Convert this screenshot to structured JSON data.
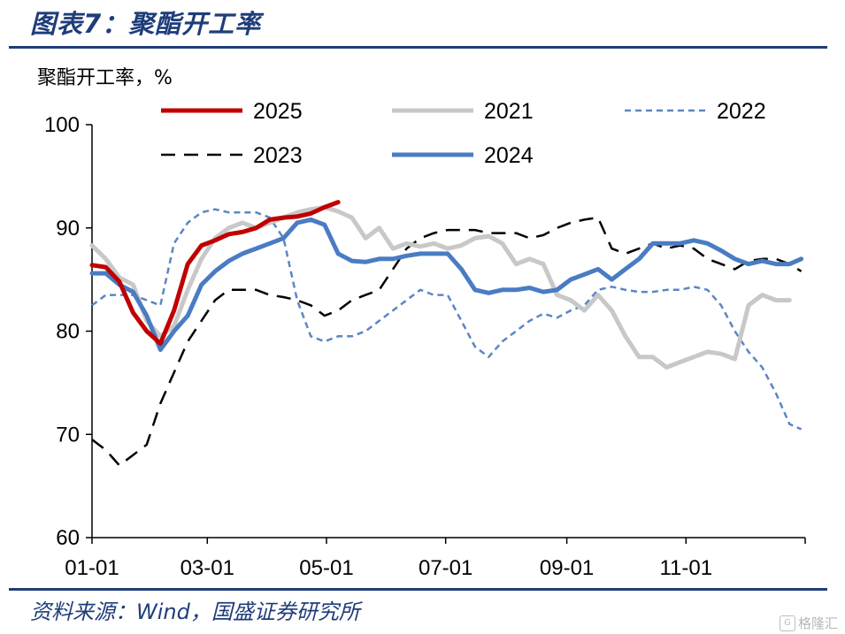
{
  "header": {
    "title": "图表7：聚酯开工率"
  },
  "footer": {
    "source": "资料来源：Wind，国盛证券研究所",
    "watermark": "格隆汇"
  },
  "chart_data": {
    "type": "line",
    "title": "图表7：聚酯开工率",
    "ylabel": "聚酯开工率，%",
    "xlabel": "",
    "ylim": [
      60,
      100
    ],
    "yticks": [
      60,
      70,
      80,
      90,
      100
    ],
    "x_range_days": [
      0,
      365
    ],
    "xticks": [
      {
        "label": "01-01",
        "day": 0
      },
      {
        "label": "03-01",
        "day": 59
      },
      {
        "label": "05-01",
        "day": 120
      },
      {
        "label": "07-01",
        "day": 181
      },
      {
        "label": "09-01",
        "day": 243
      },
      {
        "label": "11-01",
        "day": 304
      }
    ],
    "legend": {
      "placement": "top",
      "order": [
        "2025",
        "2021",
        "2022",
        "2023",
        "2024"
      ]
    },
    "series": [
      {
        "name": "2025",
        "color": "#c00000",
        "width": 5,
        "dash": "",
        "x": [
          0,
          7,
          14,
          21,
          28,
          35,
          42,
          49,
          56,
          63,
          70,
          77,
          84,
          91,
          98,
          105,
          112,
          119,
          126
        ],
        "y": [
          86.4,
          86.2,
          84.8,
          81.8,
          80.0,
          78.8,
          82.0,
          86.5,
          88.3,
          88.8,
          89.4,
          89.6,
          90.0,
          90.8,
          91.0,
          91.1,
          91.4,
          92.0,
          92.5
        ]
      },
      {
        "name": "2021",
        "color": "#c8c8c8",
        "width": 5,
        "dash": "",
        "x": [
          0,
          7,
          14,
          21,
          28,
          35,
          42,
          49,
          56,
          63,
          70,
          77,
          84,
          91,
          98,
          105,
          112,
          119,
          126,
          133,
          140,
          147,
          154,
          161,
          168,
          175,
          182,
          189,
          196,
          203,
          210,
          217,
          224,
          231,
          238,
          245,
          252,
          259,
          266,
          273,
          280,
          287,
          294,
          301,
          308,
          315,
          322,
          329,
          336,
          343,
          350,
          357
        ],
        "y": [
          88.3,
          87.0,
          85.2,
          84.5,
          81.0,
          79.5,
          80.5,
          84.0,
          87.0,
          89.0,
          90.0,
          90.5,
          90.0,
          90.5,
          91.0,
          91.5,
          91.8,
          92.0,
          91.6,
          91.0,
          89.0,
          90.0,
          88.0,
          88.5,
          88.2,
          88.5,
          88.0,
          88.3,
          89.0,
          89.2,
          88.5,
          86.5,
          87.0,
          86.5,
          83.5,
          83.0,
          82.0,
          83.5,
          82.0,
          79.5,
          77.5,
          77.5,
          76.5,
          77.0,
          77.5,
          78.0,
          77.8,
          77.3,
          82.5,
          83.5,
          83.0,
          83.0
        ]
      },
      {
        "name": "2022",
        "color": "#5b86c5",
        "width": 2.5,
        "dash": "7,5",
        "x": [
          0,
          7,
          14,
          21,
          28,
          35,
          42,
          49,
          56,
          63,
          70,
          77,
          84,
          91,
          98,
          105,
          112,
          119,
          126,
          133,
          140,
          147,
          154,
          161,
          168,
          175,
          182,
          189,
          196,
          203,
          210,
          217,
          224,
          231,
          238,
          245,
          252,
          259,
          266,
          273,
          280,
          287,
          294,
          301,
          308,
          315,
          322,
          329,
          336,
          343,
          350,
          357,
          363
        ],
        "y": [
          82.5,
          83.5,
          83.5,
          83.5,
          83.0,
          82.5,
          88.5,
          90.5,
          91.5,
          91.8,
          91.5,
          91.5,
          91.5,
          91.0,
          89.0,
          83.0,
          79.5,
          79.0,
          79.5,
          79.5,
          80.0,
          81.0,
          82.0,
          83.0,
          84.0,
          83.5,
          83.5,
          81.0,
          78.5,
          77.5,
          79.0,
          80.0,
          81.0,
          81.7,
          81.3,
          82.0,
          82.5,
          84.0,
          84.3,
          84.0,
          83.8,
          83.8,
          84.0,
          84.0,
          84.3,
          84.0,
          82.5,
          80.0,
          78.0,
          76.5,
          74.0,
          71.0,
          70.5
        ]
      },
      {
        "name": "2023",
        "color": "#000000",
        "width": 2.5,
        "dash": "16,10",
        "x": [
          0,
          7,
          14,
          21,
          28,
          35,
          42,
          49,
          56,
          63,
          70,
          77,
          84,
          91,
          98,
          105,
          112,
          119,
          126,
          133,
          140,
          147,
          154,
          161,
          168,
          175,
          182,
          189,
          196,
          203,
          210,
          217,
          224,
          231,
          238,
          245,
          252,
          259,
          266,
          273,
          280,
          287,
          294,
          301,
          308,
          315,
          322,
          329,
          336,
          343,
          350,
          357,
          363
        ],
        "y": [
          69.5,
          68.5,
          67.0,
          68.0,
          69.0,
          73.0,
          76.0,
          79.0,
          81.0,
          83.0,
          84.0,
          84.0,
          84.0,
          83.5,
          83.3,
          83.0,
          82.5,
          81.5,
          82.0,
          83.0,
          83.5,
          84.0,
          86.0,
          88.0,
          89.0,
          89.5,
          89.8,
          89.8,
          89.8,
          89.5,
          89.5,
          89.5,
          89.0,
          89.3,
          90.0,
          90.5,
          90.8,
          91.0,
          88.0,
          87.5,
          88.0,
          88.5,
          88.0,
          88.3,
          88.0,
          87.0,
          86.5,
          86.0,
          86.8,
          87.0,
          87.0,
          86.5,
          85.8
        ]
      },
      {
        "name": "2024",
        "color": "#4a7cc4",
        "width": 5,
        "dash": "",
        "x": [
          0,
          7,
          14,
          21,
          28,
          35,
          42,
          49,
          56,
          63,
          70,
          77,
          84,
          91,
          98,
          105,
          112,
          119,
          126,
          133,
          140,
          147,
          154,
          161,
          168,
          175,
          182,
          189,
          196,
          203,
          210,
          217,
          224,
          231,
          238,
          245,
          252,
          259,
          266,
          273,
          280,
          287,
          294,
          301,
          308,
          315,
          322,
          329,
          336,
          343,
          350,
          357,
          363
        ],
        "y": [
          85.6,
          85.6,
          84.5,
          83.8,
          81.5,
          78.2,
          80.0,
          81.5,
          84.5,
          85.8,
          86.8,
          87.5,
          88.0,
          88.5,
          89.0,
          90.5,
          90.8,
          90.3,
          87.5,
          86.8,
          86.7,
          87.0,
          87.0,
          87.3,
          87.5,
          87.5,
          87.5,
          86.0,
          84.0,
          83.7,
          84.0,
          84.0,
          84.2,
          83.8,
          84.0,
          85.0,
          85.5,
          86.0,
          85.0,
          86.0,
          87.0,
          88.5,
          88.5,
          88.5,
          88.8,
          88.5,
          87.8,
          87.0,
          86.5,
          86.8,
          86.5,
          86.5,
          87.0
        ]
      }
    ]
  }
}
